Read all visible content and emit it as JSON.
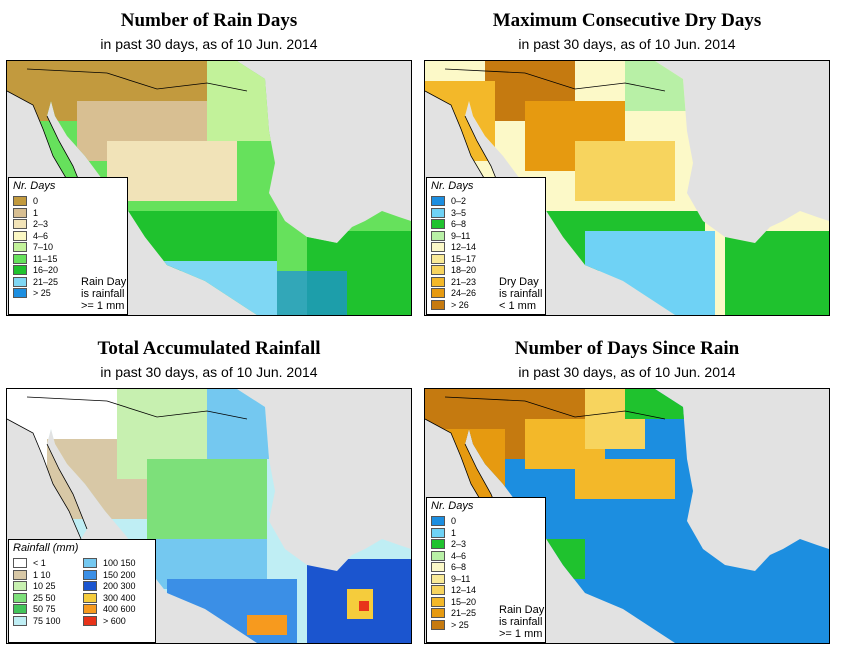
{
  "panels": [
    {
      "key": "raindays",
      "title": "Number of Rain Days",
      "subtitle": "in past 30 days, as of  10 Jun. 2014",
      "legend_title": "Nr. Days",
      "legend_items": [
        {
          "label": "0",
          "color": "#c29a3e"
        },
        {
          "label": "1",
          "color": "#d8bf92"
        },
        {
          "label": "2–3",
          "color": "#f1e3b8"
        },
        {
          "label": "4–6",
          "color": "#fbf8c4"
        },
        {
          "label": "7–10",
          "color": "#c2f29a"
        },
        {
          "label": "11–15",
          "color": "#66e15c"
        },
        {
          "label": "16–20",
          "color": "#1fc22e"
        },
        {
          "label": "21–25",
          "color": "#7fd7f4"
        },
        {
          "label": "> 25",
          "color": "#1c8ee0"
        }
      ],
      "note": [
        "Rain Day",
        "is rainfall",
        ">= 1 mm"
      ]
    },
    {
      "key": "drydays",
      "title": "Maximum Consecutive Dry Days",
      "subtitle": "in past 30 days, as of  10 Jun. 2014",
      "legend_title": "Nr. Days",
      "legend_items": [
        {
          "label": "0–2",
          "color": "#1c8ee0"
        },
        {
          "label": "3–5",
          "color": "#6fd2f5"
        },
        {
          "label": "6–8",
          "color": "#1fc22e"
        },
        {
          "label": "9–11",
          "color": "#b8f0a6"
        },
        {
          "label": "12–14",
          "color": "#fcf9c8"
        },
        {
          "label": "15–17",
          "color": "#f9ea97"
        },
        {
          "label": "18–20",
          "color": "#f7d45e"
        },
        {
          "label": "21–23",
          "color": "#f3b829"
        },
        {
          "label": "24–26",
          "color": "#e69a10"
        },
        {
          "label": "> 26",
          "color": "#c57a10"
        }
      ],
      "note": [
        "Dry Day",
        "is rainfall",
        "< 1 mm"
      ]
    },
    {
      "key": "rainfall",
      "title": "Total Accumulated Rainfall",
      "subtitle": "in past 30 days, as of  10 Jun. 2014",
      "legend_title": "Rainfall (mm)",
      "legend_items": [
        {
          "label": "< 1",
          "color": "#ffffff"
        },
        {
          "label": "1   10",
          "color": "#d8c8a6"
        },
        {
          "label": "10   25",
          "color": "#c7f0b0"
        },
        {
          "label": "25   50",
          "color": "#7de07a"
        },
        {
          "label": "50   75",
          "color": "#42c45a"
        },
        {
          "label": "75  100",
          "color": "#bfeef4"
        },
        {
          "label": "100  150",
          "color": "#74c8f0"
        },
        {
          "label": "150  200",
          "color": "#3b8fe6"
        },
        {
          "label": "200  300",
          "color": "#1b55cf"
        },
        {
          "label": "300  400",
          "color": "#f5cc3c"
        },
        {
          "label": "400  600",
          "color": "#f79a1e"
        },
        {
          "label": "> 600",
          "color": "#e8331a"
        }
      ],
      "note": []
    },
    {
      "key": "since",
      "title": "Number of Days Since Rain",
      "subtitle": "in past 30 days, as of  10 Jun. 2014",
      "legend_title": "Nr. Days",
      "legend_items": [
        {
          "label": "0",
          "color": "#1c8ee0"
        },
        {
          "label": "1",
          "color": "#6fd2f5"
        },
        {
          "label": "2–3",
          "color": "#1fc22e"
        },
        {
          "label": "4–6",
          "color": "#b8f0a6"
        },
        {
          "label": "6–8",
          "color": "#fcf9c8"
        },
        {
          "label": "9–11",
          "color": "#f9ea97"
        },
        {
          "label": "12–14",
          "color": "#f7d45e"
        },
        {
          "label": "15–20",
          "color": "#f3b829"
        },
        {
          "label": "21–25",
          "color": "#e69a10"
        },
        {
          "label": "> 25",
          "color": "#c57a10"
        }
      ],
      "note": [
        "Rain Day",
        "is rainfall",
        ">= 1 mm"
      ]
    }
  ]
}
